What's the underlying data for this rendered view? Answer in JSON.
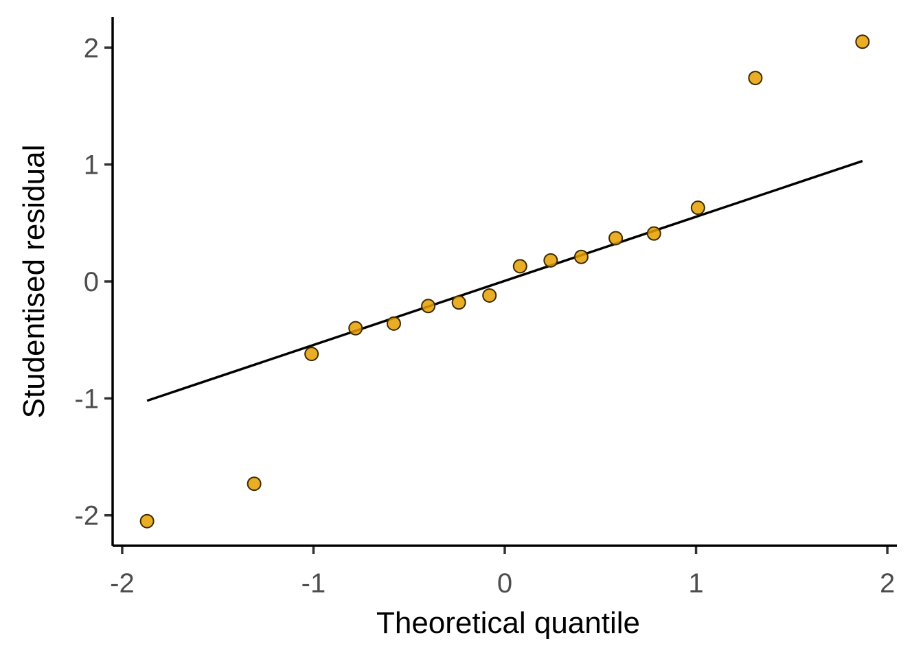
{
  "chart_data": {
    "type": "scatter",
    "xlabel": "Theoretical quantile",
    "ylabel": "Studentised residual",
    "xlim": [
      -2.05,
      2.05
    ],
    "ylim": [
      -2.26,
      2.26
    ],
    "x_ticks": [
      -2,
      -1,
      0,
      1,
      2
    ],
    "y_ticks": [
      -2,
      -1,
      0,
      1,
      2
    ],
    "x_tick_labels": [
      "-2",
      "-1",
      "0",
      "1",
      "2"
    ],
    "y_tick_labels": [
      "-2",
      "-1",
      "0",
      "1",
      "2"
    ],
    "grid": false,
    "legend": "none",
    "point_color": "#E69F00",
    "points": [
      {
        "x": -1.87,
        "y": -2.05
      },
      {
        "x": -1.31,
        "y": -1.73
      },
      {
        "x": -1.01,
        "y": -0.62
      },
      {
        "x": -0.78,
        "y": -0.4
      },
      {
        "x": -0.58,
        "y": -0.36
      },
      {
        "x": -0.4,
        "y": -0.21
      },
      {
        "x": -0.24,
        "y": -0.18
      },
      {
        "x": -0.08,
        "y": -0.12
      },
      {
        "x": 0.08,
        "y": 0.13
      },
      {
        "x": 0.24,
        "y": 0.18
      },
      {
        "x": 0.4,
        "y": 0.21
      },
      {
        "x": 0.58,
        "y": 0.37
      },
      {
        "x": 0.78,
        "y": 0.41
      },
      {
        "x": 1.01,
        "y": 0.63
      },
      {
        "x": 1.31,
        "y": 1.74
      },
      {
        "x": 1.87,
        "y": 2.05
      }
    ],
    "reference_line": {
      "x_start": -1.87,
      "y_start": -1.02,
      "x_end": 1.87,
      "y_end": 1.03
    }
  }
}
